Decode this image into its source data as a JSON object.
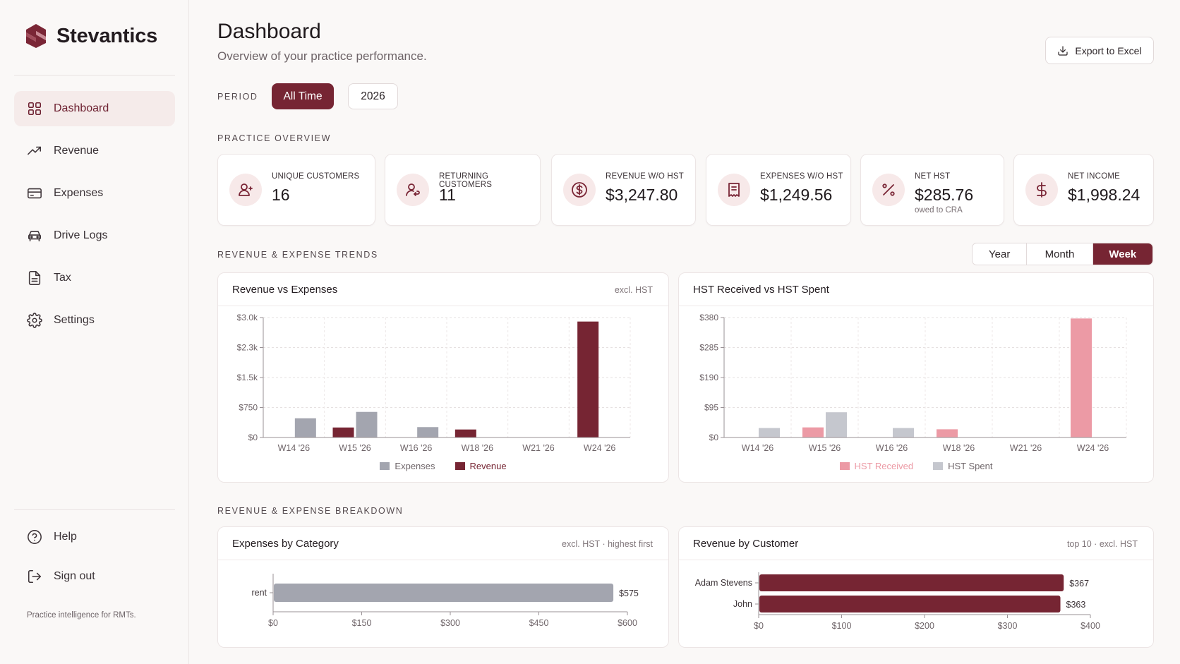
{
  "sidebar": {
    "brand": "Stevantics",
    "nav": [
      {
        "label": "Dashboard",
        "icon": "grid-icon",
        "active": true
      },
      {
        "label": "Revenue",
        "icon": "trending-up-icon"
      },
      {
        "label": "Expenses",
        "icon": "credit-card-icon"
      },
      {
        "label": "Drive Logs",
        "icon": "car-icon"
      },
      {
        "label": "Tax",
        "icon": "file-text-icon"
      },
      {
        "label": "Settings",
        "icon": "gear-icon"
      }
    ],
    "bottom": [
      {
        "label": "Help",
        "icon": "help-circle-icon"
      },
      {
        "label": "Sign out",
        "icon": "log-out-icon"
      }
    ],
    "tagline": "Practice intelligence for RMTs."
  },
  "header": {
    "title": "Dashboard",
    "subtitle": "Overview of your practice performance.",
    "export_label": "Export to Excel"
  },
  "period": {
    "label": "PERIOD",
    "options": [
      "All Time",
      "2026"
    ],
    "selected": "All Time"
  },
  "sections": {
    "overview": "PRACTICE OVERVIEW",
    "trends": "REVENUE & EXPENSE TRENDS",
    "breakdown": "REVENUE & EXPENSE BREAKDOWN"
  },
  "kpis": [
    {
      "label": "UNIQUE CUSTOMERS",
      "value": "16",
      "icon": "user-plus-icon"
    },
    {
      "label": "RETURNING CUSTOMERS",
      "value": "11",
      "icon": "user-return-icon"
    },
    {
      "label": "REVENUE W/O HST",
      "value": "$3,247.80",
      "icon": "dollar-circle-icon"
    },
    {
      "label": "EXPENSES W/O HST",
      "value": "$1,249.56",
      "icon": "receipt-icon"
    },
    {
      "label": "NET HST",
      "value": "$285.76",
      "note": "owed to CRA",
      "icon": "percent-icon"
    },
    {
      "label": "NET INCOME",
      "value": "$1,998.24",
      "icon": "dollar-icon"
    }
  ],
  "trend_toggle": {
    "options": [
      "Year",
      "Month",
      "Week"
    ],
    "selected": "Week"
  },
  "colors": {
    "accent": "#762533",
    "revenue": "#762533",
    "expenses": "#a3a5af",
    "hst_received": "#ec9aa5",
    "hst_spent": "#c5c7ce"
  },
  "charts": {
    "rev_exp": {
      "title": "Revenue vs Expenses",
      "note": "excl. HST"
    },
    "hst": {
      "title": "HST Received vs HST Spent",
      "note": ""
    },
    "exp_cat": {
      "title": "Expenses by Category",
      "note": "excl. HST · highest first"
    },
    "rev_cust": {
      "title": "Revenue by Customer",
      "note": "top 10 · excl. HST"
    }
  },
  "chart_data": [
    {
      "id": "rev_exp",
      "type": "bar",
      "title": "Revenue vs Expenses",
      "categories": [
        "W14 '26",
        "W15 '26",
        "W16 '26",
        "W18 '26",
        "W21 '26",
        "W24 '26"
      ],
      "series": [
        {
          "name": "Expenses",
          "values": [
            480,
            640,
            260,
            0,
            0,
            0
          ]
        },
        {
          "name": "Revenue",
          "values": [
            0,
            250,
            0,
            200,
            0,
            2900
          ]
        }
      ],
      "y_ticks": [
        "$0",
        "$750",
        "$1.5k",
        "$2.3k",
        "$3.0k"
      ],
      "ylim": [
        0,
        3000
      ],
      "grid": true,
      "legend": "bottom"
    },
    {
      "id": "hst",
      "type": "bar",
      "title": "HST Received vs HST Spent",
      "categories": [
        "W14 '26",
        "W15 '26",
        "W16 '26",
        "W18 '26",
        "W21 '26",
        "W24 '26"
      ],
      "series": [
        {
          "name": "HST Received",
          "values": [
            0,
            32,
            0,
            26,
            0,
            377
          ]
        },
        {
          "name": "HST Spent",
          "values": [
            30,
            80,
            30,
            0,
            0,
            0
          ]
        }
      ],
      "y_ticks": [
        "$0",
        "$95",
        "$190",
        "$285",
        "$380"
      ],
      "ylim": [
        0,
        380
      ],
      "grid": true,
      "legend": "bottom"
    },
    {
      "id": "exp_cat",
      "type": "bar",
      "orientation": "horizontal",
      "title": "Expenses by Category",
      "categories": [
        "rent"
      ],
      "values": [
        575
      ],
      "value_labels": [
        "$575"
      ],
      "x_ticks": [
        "$0",
        "$150",
        "$300",
        "$450",
        "$600"
      ],
      "xlim": [
        0,
        600
      ]
    },
    {
      "id": "rev_cust",
      "type": "bar",
      "orientation": "horizontal",
      "title": "Revenue by Customer",
      "categories": [
        "Adam Stevens",
        "John"
      ],
      "values": [
        367,
        363
      ],
      "value_labels": [
        "$367",
        "$363"
      ],
      "x_ticks": [
        "$0",
        "$100",
        "$200",
        "$300",
        "$400"
      ],
      "xlim": [
        0,
        400
      ]
    }
  ]
}
